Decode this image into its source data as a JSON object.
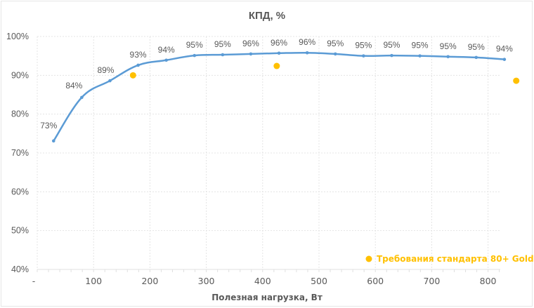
{
  "chart_data": {
    "type": "scatter",
    "title": "КПД, %",
    "xlabel": "Полезная нагрузка, Вт",
    "ylabel": "",
    "xlim": [
      0,
      850
    ],
    "ylim": [
      40,
      100
    ],
    "x_ticks": [
      "-",
      "100",
      "200",
      "300",
      "400",
      "500",
      "600",
      "700",
      "800"
    ],
    "x_tick_values": [
      0,
      100,
      200,
      300,
      400,
      500,
      600,
      700,
      800
    ],
    "y_ticks": [
      "40%",
      "50%",
      "60%",
      "70%",
      "80%",
      "90%",
      "100%"
    ],
    "y_tick_values": [
      40,
      50,
      60,
      70,
      80,
      90,
      100
    ],
    "grid": true,
    "legend_position": "bottom-right",
    "series": [
      {
        "name": "КПД",
        "style": "smooth-line-with-markers",
        "color": "#5B9BD5",
        "x": [
          29,
          79,
          129,
          179,
          229,
          279,
          329,
          379,
          429,
          479,
          529,
          579,
          629,
          679,
          729,
          779,
          829
        ],
        "values": [
          73.1,
          84.3,
          88.6,
          92.6,
          93.9,
          95.1,
          95.3,
          95.5,
          95.7,
          95.8,
          95.5,
          95.0,
          95.1,
          95.0,
          94.8,
          94.6,
          94.1
        ],
        "labels": [
          "73%",
          "84%",
          "89%",
          "93%",
          "94%",
          "95%",
          "95%",
          "96%",
          "96%",
          "96%",
          "95%",
          "95%",
          "95%",
          "95%",
          "95%",
          "95%",
          "94%"
        ]
      },
      {
        "name": "Требования стандарта 80+ Gold",
        "style": "markers",
        "color": "#FFC000",
        "x": [
          170,
          425,
          850
        ],
        "values": [
          90,
          92.4,
          88.6
        ]
      }
    ]
  },
  "legend": {
    "label": "Требования стандарта 80+ Gold",
    "color": "#FFC000"
  }
}
